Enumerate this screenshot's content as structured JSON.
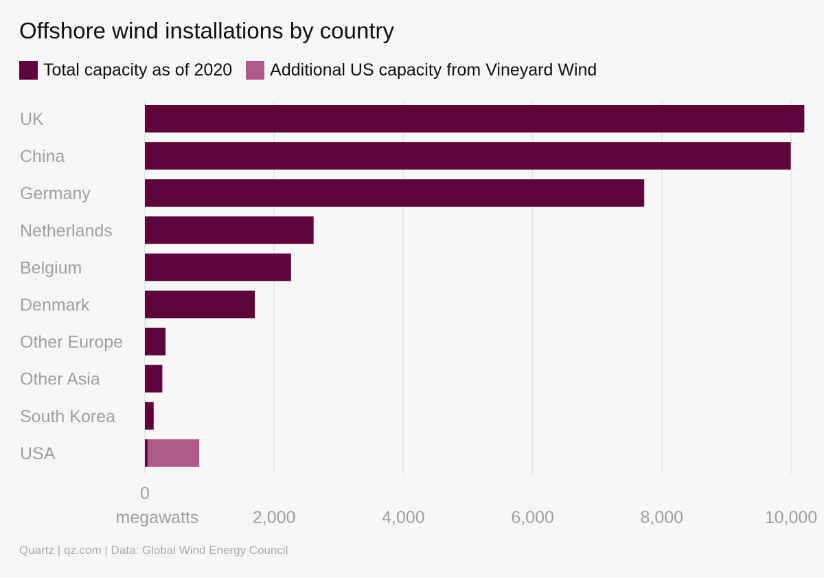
{
  "title": "Offshore wind installations by country",
  "legend": [
    {
      "label": "Total capacity as of 2020",
      "color": "#5c063b"
    },
    {
      "label": "Additional US capacity from Vineyard Wind",
      "color": "#ad5a8b"
    }
  ],
  "footer": "Quartz | qz.com | Data: Global Wind Energy Council",
  "chart_data": {
    "type": "bar",
    "orientation": "horizontal",
    "stacked": true,
    "categories": [
      "UK",
      "China",
      "Germany",
      "Netherlands",
      "Belgium",
      "Denmark",
      "Other Europe",
      "Other Asia",
      "South Korea",
      "USA"
    ],
    "series": [
      {
        "name": "Total capacity as of 2020",
        "color": "#5c063b",
        "values": [
          10206,
          9996,
          7728,
          2611,
          2262,
          1703,
          320,
          270,
          136,
          42
        ]
      },
      {
        "name": "Additional US capacity from Vineyard Wind",
        "color": "#ad5a8b",
        "values": [
          0,
          0,
          0,
          0,
          0,
          0,
          0,
          0,
          0,
          800
        ]
      }
    ],
    "xlim": [
      0,
      10250
    ],
    "xticks": [
      0,
      2000,
      4000,
      6000,
      8000,
      10000
    ],
    "xtick_labels": [
      "0",
      "2,000",
      "4,000",
      "6,000",
      "8,000",
      "10,000"
    ],
    "xlabel": "megawatts",
    "grid": true
  }
}
